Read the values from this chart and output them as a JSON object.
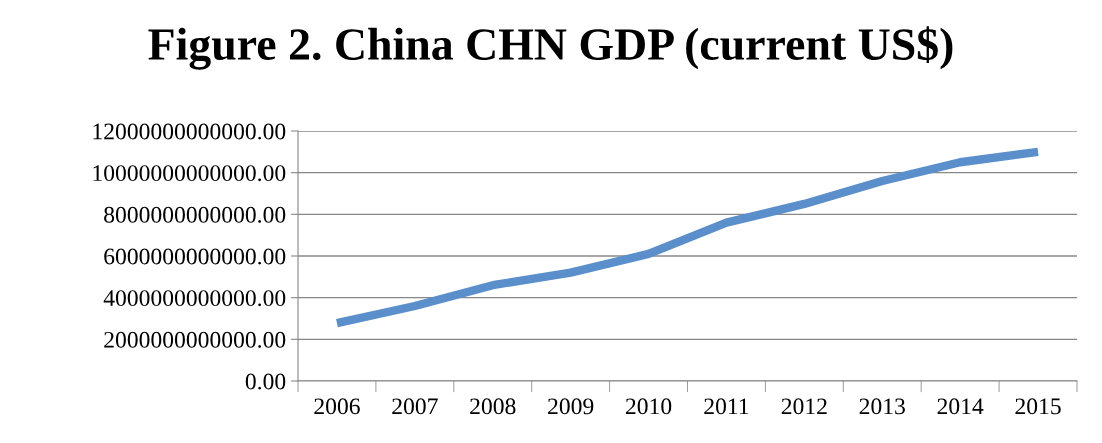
{
  "chart_data": {
    "type": "line",
    "title": "Figure 2. China CHN GDP (current US$)",
    "categories": [
      "2006",
      "2007",
      "2008",
      "2009",
      "2010",
      "2011",
      "2012",
      "2013",
      "2014",
      "2015"
    ],
    "series": [
      {
        "color": "#5b8fcb",
        "values": [
          2780000000000,
          3600000000000,
          4600000000000,
          5200000000000,
          6100000000000,
          7600000000000,
          8500000000000,
          9600000000000,
          10500000000000,
          11000000000000
        ]
      }
    ],
    "ylim": [
      0,
      12000000000000
    ],
    "yticks": [
      {
        "value": 0,
        "label": "0.00"
      },
      {
        "value": 2000000000000,
        "label": "2000000000000.00"
      },
      {
        "value": 4000000000000,
        "label": "4000000000000.00"
      },
      {
        "value": 6000000000000,
        "label": "6000000000000.00"
      },
      {
        "value": 8000000000000,
        "label": "8000000000000.00"
      },
      {
        "value": 10000000000000,
        "label": "10000000000000.00"
      },
      {
        "value": 12000000000000,
        "label": "12000000000000.00"
      }
    ],
    "grid": "y",
    "legend": false,
    "marker": "none",
    "line_style": "solid"
  }
}
